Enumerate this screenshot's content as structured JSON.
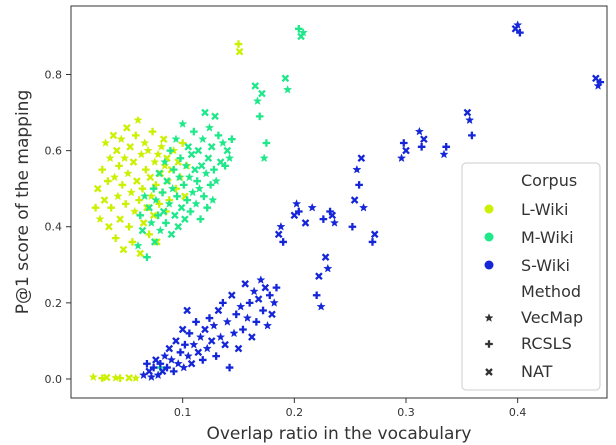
{
  "chart_data": {
    "type": "scatter",
    "title": "",
    "xlabel": "Overlap ratio in the vocabulary",
    "ylabel": "P@1 score of the mapping",
    "xlim": [
      0.0,
      0.48
    ],
    "ylim": [
      -0.05,
      0.98
    ],
    "xticks": [
      0.1,
      0.2,
      0.3,
      0.4
    ],
    "yticks": [
      0.0,
      0.2,
      0.4,
      0.6,
      0.8
    ],
    "xtick_labels": [
      "0.1",
      "0.2",
      "0.3",
      "0.4"
    ],
    "ytick_labels": [
      "0.0",
      "0.2",
      "0.4",
      "0.6",
      "0.8"
    ],
    "grid": false,
    "legend_position": "bottom-right",
    "legend": {
      "hue_title": "Corpus",
      "hue": [
        {
          "label": "L-Wiki",
          "color": "#ccf000"
        },
        {
          "label": "M-Wiki",
          "color": "#1ee88a"
        },
        {
          "label": "S-Wiki",
          "color": "#1426d8"
        }
      ],
      "style_title": "Method",
      "style": [
        {
          "label": "VecMap",
          "marker": "star"
        },
        {
          "label": "RCSLS",
          "marker": "plus"
        },
        {
          "label": "NAT",
          "marker": "x"
        }
      ]
    },
    "series": [
      {
        "name": "L-Wiki",
        "color": "#ccf000",
        "points": [
          [
            0.02,
            0.005
          ],
          [
            0.028,
            0.002
          ],
          [
            0.032,
            0.004
          ],
          [
            0.04,
            0.003
          ],
          [
            0.044,
            0.002
          ],
          [
            0.052,
            0.003
          ],
          [
            0.058,
            0.002
          ],
          [
            0.022,
            0.45
          ],
          [
            0.024,
            0.5
          ],
          [
            0.026,
            0.42
          ],
          [
            0.028,
            0.55
          ],
          [
            0.03,
            0.47
          ],
          [
            0.031,
            0.62
          ],
          [
            0.033,
            0.52
          ],
          [
            0.034,
            0.4
          ],
          [
            0.035,
            0.58
          ],
          [
            0.036,
            0.45
          ],
          [
            0.038,
            0.64
          ],
          [
            0.039,
            0.53
          ],
          [
            0.04,
            0.37
          ],
          [
            0.041,
            0.6
          ],
          [
            0.042,
            0.48
          ],
          [
            0.043,
            0.56
          ],
          [
            0.044,
            0.42
          ],
          [
            0.045,
            0.63
          ],
          [
            0.046,
            0.51
          ],
          [
            0.047,
            0.34
          ],
          [
            0.048,
            0.58
          ],
          [
            0.049,
            0.46
          ],
          [
            0.05,
            0.66
          ],
          [
            0.051,
            0.54
          ],
          [
            0.052,
            0.4
          ],
          [
            0.053,
            0.61
          ],
          [
            0.054,
            0.49
          ],
          [
            0.055,
            0.36
          ],
          [
            0.056,
            0.57
          ],
          [
            0.057,
            0.44
          ],
          [
            0.058,
            0.64
          ],
          [
            0.059,
            0.52
          ],
          [
            0.06,
            0.68
          ],
          [
            0.061,
            0.47
          ],
          [
            0.062,
            0.33
          ],
          [
            0.063,
            0.59
          ],
          [
            0.064,
            0.5
          ],
          [
            0.065,
            0.41
          ],
          [
            0.066,
            0.62
          ],
          [
            0.067,
            0.55
          ],
          [
            0.068,
            0.45
          ],
          [
            0.069,
            0.6
          ],
          [
            0.07,
            0.38
          ],
          [
            0.071,
            0.53
          ],
          [
            0.072,
            0.48
          ],
          [
            0.073,
            0.65
          ],
          [
            0.074,
            0.43
          ],
          [
            0.075,
            0.57
          ],
          [
            0.076,
            0.51
          ],
          [
            0.077,
            0.36
          ],
          [
            0.078,
            0.59
          ],
          [
            0.079,
            0.46
          ],
          [
            0.08,
            0.54
          ],
          [
            0.081,
            0.61
          ],
          [
            0.082,
            0.49
          ],
          [
            0.083,
            0.63
          ],
          [
            0.084,
            0.56
          ],
          [
            0.085,
            0.44
          ],
          [
            0.086,
            0.58
          ],
          [
            0.087,
            0.52
          ],
          [
            0.088,
            0.47
          ],
          [
            0.09,
            0.55
          ],
          [
            0.092,
            0.6
          ],
          [
            0.094,
            0.5
          ],
          [
            0.096,
            0.57
          ],
          [
            0.098,
            0.53
          ],
          [
            0.1,
            0.62
          ],
          [
            0.102,
            0.48
          ],
          [
            0.104,
            0.56
          ],
          [
            0.15,
            0.88
          ],
          [
            0.151,
            0.86
          ]
        ]
      },
      {
        "name": "M-Wiki",
        "color": "#1ee88a",
        "points": [
          [
            0.06,
            0.35
          ],
          [
            0.062,
            0.43
          ],
          [
            0.064,
            0.39
          ],
          [
            0.066,
            0.48
          ],
          [
            0.068,
            0.32
          ],
          [
            0.07,
            0.45
          ],
          [
            0.072,
            0.41
          ],
          [
            0.074,
            0.5
          ],
          [
            0.075,
            0.36
          ],
          [
            0.076,
            0.47
          ],
          [
            0.078,
            0.43
          ],
          [
            0.079,
            0.54
          ],
          [
            0.08,
            0.39
          ],
          [
            0.082,
            0.49
          ],
          [
            0.083,
            0.44
          ],
          [
            0.084,
            0.57
          ],
          [
            0.085,
            0.41
          ],
          [
            0.086,
            0.52
          ],
          [
            0.088,
            0.46
          ],
          [
            0.089,
            0.6
          ],
          [
            0.09,
            0.38
          ],
          [
            0.091,
            0.5
          ],
          [
            0.092,
            0.55
          ],
          [
            0.093,
            0.43
          ],
          [
            0.094,
            0.63
          ],
          [
            0.095,
            0.48
          ],
          [
            0.096,
            0.4
          ],
          [
            0.097,
            0.53
          ],
          [
            0.098,
            0.58
          ],
          [
            0.099,
            0.45
          ],
          [
            0.1,
            0.67
          ],
          [
            0.101,
            0.51
          ],
          [
            0.102,
            0.42
          ],
          [
            0.103,
            0.56
          ],
          [
            0.104,
            0.47
          ],
          [
            0.105,
            0.61
          ],
          [
            0.106,
            0.53
          ],
          [
            0.107,
            0.44
          ],
          [
            0.108,
            0.59
          ],
          [
            0.109,
            0.49
          ],
          [
            0.11,
            0.65
          ],
          [
            0.111,
            0.55
          ],
          [
            0.112,
            0.46
          ],
          [
            0.113,
            0.52
          ],
          [
            0.114,
            0.6
          ],
          [
            0.115,
            0.5
          ],
          [
            0.116,
            0.42
          ],
          [
            0.117,
            0.56
          ],
          [
            0.118,
            0.63
          ],
          [
            0.119,
            0.48
          ],
          [
            0.12,
            0.7
          ],
          [
            0.121,
            0.54
          ],
          [
            0.122,
            0.45
          ],
          [
            0.123,
            0.58
          ],
          [
            0.124,
            0.66
          ],
          [
            0.125,
            0.51
          ],
          [
            0.126,
            0.61
          ],
          [
            0.127,
            0.47
          ],
          [
            0.128,
            0.55
          ],
          [
            0.129,
            0.69
          ],
          [
            0.13,
            0.52
          ],
          [
            0.132,
            0.64
          ],
          [
            0.134,
            0.57
          ],
          [
            0.136,
            0.62
          ],
          [
            0.138,
            0.56
          ],
          [
            0.14,
            0.6
          ],
          [
            0.142,
            0.58
          ],
          [
            0.144,
            0.63
          ],
          [
            0.165,
            0.77
          ],
          [
            0.167,
            0.73
          ],
          [
            0.169,
            0.69
          ],
          [
            0.171,
            0.75
          ],
          [
            0.173,
            0.58
          ],
          [
            0.175,
            0.62
          ],
          [
            0.192,
            0.79
          ],
          [
            0.194,
            0.76
          ],
          [
            0.204,
            0.92
          ],
          [
            0.206,
            0.9
          ],
          [
            0.208,
            0.91
          ],
          [
            0.08,
            0.03
          ]
        ]
      },
      {
        "name": "S-Wiki",
        "color": "#1426d8",
        "points": [
          [
            0.065,
            0.01
          ],
          [
            0.068,
            0.04
          ],
          [
            0.07,
            0.02
          ],
          [
            0.072,
            0.005
          ],
          [
            0.074,
            0.03
          ],
          [
            0.076,
            0.05
          ],
          [
            0.078,
            0.01
          ],
          [
            0.08,
            0.04
          ],
          [
            0.082,
            0.02
          ],
          [
            0.084,
            0.06
          ],
          [
            0.086,
            0.03
          ],
          [
            0.088,
            0.08
          ],
          [
            0.09,
            0.05
          ],
          [
            0.092,
            0.02
          ],
          [
            0.094,
            0.1
          ],
          [
            0.096,
            0.04
          ],
          [
            0.098,
            0.07
          ],
          [
            0.1,
            0.13
          ],
          [
            0.101,
            0.03
          ],
          [
            0.102,
            0.09
          ],
          [
            0.104,
            0.18
          ],
          [
            0.105,
            0.06
          ],
          [
            0.106,
            0.12
          ],
          [
            0.108,
            0.04
          ],
          [
            0.11,
            0.09
          ],
          [
            0.112,
            0.15
          ],
          [
            0.114,
            0.07
          ],
          [
            0.116,
            0.11
          ],
          [
            0.118,
            0.05
          ],
          [
            0.12,
            0.13
          ],
          [
            0.122,
            0.08
          ],
          [
            0.124,
            0.16
          ],
          [
            0.126,
            0.1
          ],
          [
            0.128,
            0.14
          ],
          [
            0.13,
            0.06
          ],
          [
            0.132,
            0.18
          ],
          [
            0.134,
            0.11
          ],
          [
            0.136,
            0.2
          ],
          [
            0.138,
            0.09
          ],
          [
            0.14,
            0.15
          ],
          [
            0.142,
            0.03
          ],
          [
            0.144,
            0.22
          ],
          [
            0.146,
            0.12
          ],
          [
            0.148,
            0.17
          ],
          [
            0.15,
            0.08
          ],
          [
            0.152,
            0.19
          ],
          [
            0.154,
            0.13
          ],
          [
            0.156,
            0.25
          ],
          [
            0.158,
            0.16
          ],
          [
            0.16,
            0.2
          ],
          [
            0.162,
            0.11
          ],
          [
            0.164,
            0.23
          ],
          [
            0.166,
            0.15
          ],
          [
            0.168,
            0.21
          ],
          [
            0.17,
            0.26
          ],
          [
            0.172,
            0.18
          ],
          [
            0.174,
            0.24
          ],
          [
            0.176,
            0.14
          ],
          [
            0.178,
            0.22
          ],
          [
            0.18,
            0.17
          ],
          [
            0.182,
            0.2
          ],
          [
            0.184,
            0.24
          ],
          [
            0.186,
            0.38
          ],
          [
            0.188,
            0.4
          ],
          [
            0.19,
            0.36
          ],
          [
            0.2,
            0.43
          ],
          [
            0.202,
            0.46
          ],
          [
            0.204,
            0.44
          ],
          [
            0.21,
            0.41
          ],
          [
            0.216,
            0.45
          ],
          [
            0.22,
            0.22
          ],
          [
            0.222,
            0.27
          ],
          [
            0.224,
            0.19
          ],
          [
            0.226,
            0.42
          ],
          [
            0.228,
            0.32
          ],
          [
            0.23,
            0.29
          ],
          [
            0.232,
            0.44
          ],
          [
            0.234,
            0.43
          ],
          [
            0.236,
            0.41
          ],
          [
            0.252,
            0.4
          ],
          [
            0.254,
            0.47
          ],
          [
            0.256,
            0.55
          ],
          [
            0.258,
            0.51
          ],
          [
            0.26,
            0.58
          ],
          [
            0.262,
            0.45
          ],
          [
            0.27,
            0.36
          ],
          [
            0.272,
            0.38
          ],
          [
            0.296,
            0.58
          ],
          [
            0.298,
            0.62
          ],
          [
            0.3,
            0.6
          ],
          [
            0.312,
            0.65
          ],
          [
            0.314,
            0.61
          ],
          [
            0.316,
            0.63
          ],
          [
            0.334,
            0.59
          ],
          [
            0.336,
            0.61
          ],
          [
            0.355,
            0.7
          ],
          [
            0.357,
            0.68
          ],
          [
            0.359,
            0.64
          ],
          [
            0.398,
            0.92
          ],
          [
            0.4,
            0.93
          ],
          [
            0.402,
            0.91
          ],
          [
            0.47,
            0.79
          ],
          [
            0.472,
            0.77
          ],
          [
            0.474,
            0.78
          ]
        ]
      }
    ]
  }
}
